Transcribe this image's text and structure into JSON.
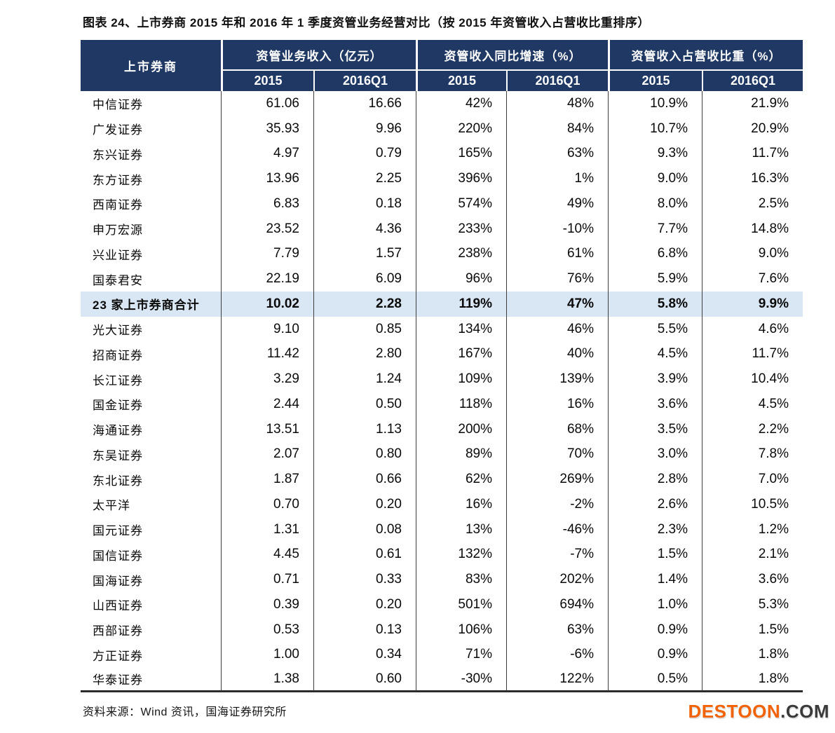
{
  "page": {
    "title": "图表 24、上市券商 2015 年和 2016 年 1 季度资管业务经营对比（按 2015 年资管收入占营收比重排序）",
    "source_note": "资料来源：Wind 资讯，国海证券研究所",
    "watermark": {
      "brand": "DESTOON",
      "suffix": ".COM"
    }
  },
  "colors": {
    "header_bg": "#1f3864",
    "header_text": "#ffffff",
    "highlight_row_bg": "#d9e6f3",
    "body_text": "#0a0a0a",
    "column_rule": "#3d3d3d",
    "watermark_brand": "#f26208",
    "watermark_suffix": "#3a3a3a"
  },
  "table": {
    "corner_header": "上市券商",
    "groups": [
      {
        "label": "资管业务收入（亿元）",
        "sub": [
          "2015",
          "2016Q1"
        ]
      },
      {
        "label": "资管收入同比增速（%）",
        "sub": [
          "2015",
          "2016Q1"
        ]
      },
      {
        "label": "资管收入占营收比重（%）",
        "sub": [
          "2015",
          "2016Q1"
        ]
      }
    ],
    "rows": [
      {
        "name": "中信证券",
        "values": [
          "61.06",
          "16.66",
          "42%",
          "48%",
          "10.9%",
          "21.9%"
        ],
        "highlight": false
      },
      {
        "name": "广发证券",
        "values": [
          "35.93",
          "9.96",
          "220%",
          "84%",
          "10.7%",
          "20.9%"
        ],
        "highlight": false
      },
      {
        "name": "东兴证券",
        "values": [
          "4.97",
          "0.79",
          "165%",
          "63%",
          "9.3%",
          "11.7%"
        ],
        "highlight": false
      },
      {
        "name": "东方证券",
        "values": [
          "13.96",
          "2.25",
          "396%",
          "1%",
          "9.0%",
          "16.3%"
        ],
        "highlight": false
      },
      {
        "name": "西南证券",
        "values": [
          "6.83",
          "0.18",
          "574%",
          "49%",
          "8.0%",
          "2.5%"
        ],
        "highlight": false
      },
      {
        "name": "申万宏源",
        "values": [
          "23.52",
          "4.36",
          "233%",
          "-10%",
          "7.7%",
          "14.8%"
        ],
        "highlight": false
      },
      {
        "name": "兴业证券",
        "values": [
          "7.79",
          "1.57",
          "238%",
          "61%",
          "6.8%",
          "9.0%"
        ],
        "highlight": false
      },
      {
        "name": "国泰君安",
        "values": [
          "22.19",
          "6.09",
          "96%",
          "76%",
          "5.9%",
          "7.6%"
        ],
        "highlight": false
      },
      {
        "name": "23 家上市券商合计",
        "values": [
          "10.02",
          "2.28",
          "119%",
          "47%",
          "5.8%",
          "9.9%"
        ],
        "highlight": true
      },
      {
        "name": "光大证券",
        "values": [
          "9.10",
          "0.85",
          "134%",
          "46%",
          "5.5%",
          "4.6%"
        ],
        "highlight": false
      },
      {
        "name": "招商证券",
        "values": [
          "11.42",
          "2.80",
          "167%",
          "40%",
          "4.5%",
          "11.7%"
        ],
        "highlight": false
      },
      {
        "name": "长江证券",
        "values": [
          "3.29",
          "1.24",
          "109%",
          "139%",
          "3.9%",
          "10.4%"
        ],
        "highlight": false
      },
      {
        "name": "国金证券",
        "values": [
          "2.44",
          "0.50",
          "118%",
          "16%",
          "3.6%",
          "4.5%"
        ],
        "highlight": false
      },
      {
        "name": "海通证券",
        "values": [
          "13.51",
          "1.13",
          "200%",
          "68%",
          "3.5%",
          "2.2%"
        ],
        "highlight": false
      },
      {
        "name": "东吴证券",
        "values": [
          "2.07",
          "0.80",
          "89%",
          "70%",
          "3.0%",
          "7.8%"
        ],
        "highlight": false
      },
      {
        "name": "东北证券",
        "values": [
          "1.87",
          "0.66",
          "62%",
          "269%",
          "2.8%",
          "7.0%"
        ],
        "highlight": false
      },
      {
        "name": "太平洋",
        "values": [
          "0.70",
          "0.20",
          "16%",
          "-2%",
          "2.6%",
          "10.5%"
        ],
        "highlight": false
      },
      {
        "name": "国元证券",
        "values": [
          "1.31",
          "0.08",
          "13%",
          "-46%",
          "2.3%",
          "1.2%"
        ],
        "highlight": false
      },
      {
        "name": "国信证券",
        "values": [
          "4.45",
          "0.61",
          "132%",
          "-7%",
          "1.5%",
          "2.1%"
        ],
        "highlight": false
      },
      {
        "name": "国海证券",
        "values": [
          "0.71",
          "0.33",
          "83%",
          "202%",
          "1.4%",
          "3.6%"
        ],
        "highlight": false
      },
      {
        "name": "山西证券",
        "values": [
          "0.39",
          "0.20",
          "501%",
          "694%",
          "1.0%",
          "5.3%"
        ],
        "highlight": false
      },
      {
        "name": "西部证券",
        "values": [
          "0.53",
          "0.13",
          "106%",
          "63%",
          "0.9%",
          "1.5%"
        ],
        "highlight": false
      },
      {
        "name": "方正证券",
        "values": [
          "1.00",
          "0.34",
          "71%",
          "-6%",
          "0.9%",
          "1.8%"
        ],
        "highlight": false
      },
      {
        "name": "华泰证券",
        "values": [
          "1.38",
          "0.60",
          "-30%",
          "122%",
          "0.5%",
          "1.8%"
        ],
        "highlight": false
      }
    ]
  }
}
